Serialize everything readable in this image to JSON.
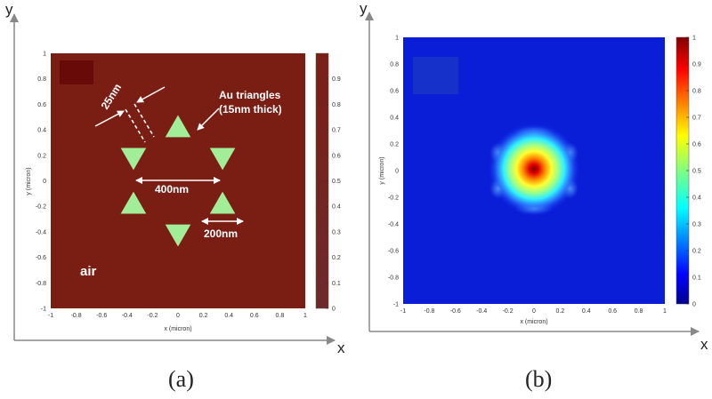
{
  "panel_a": {
    "label": "(a)",
    "background_color": "#7a1e14",
    "triangle_color": "#a2ee98",
    "annotations": {
      "gap": "25nm",
      "title_line1": "Au triangles",
      "title_line2": "(15nm thick)",
      "span": "400nm",
      "side": "200nm",
      "medium": "air"
    },
    "axis_x_letter": "x",
    "axis_y_letter": "y"
  },
  "panel_b": {
    "label": "(b)",
    "axis_x_letter": "x",
    "axis_y_letter": "y"
  },
  "chart_data": [
    {
      "type": "heatmap",
      "title": "",
      "xlabel": "x (micron)",
      "ylabel": "y (micron)",
      "xlim": [
        -1,
        1
      ],
      "ylim": [
        -1,
        1
      ],
      "x_ticks": [
        "-1",
        "-0.8",
        "-0.6",
        "-0.4",
        "-0.2",
        "0",
        "0.2",
        "0.4",
        "0.6",
        "0.8",
        "1"
      ],
      "y_ticks": [
        "-1",
        "-0.8",
        "-0.6",
        "-0.4",
        "-0.2",
        "0",
        "0.2",
        "0.4",
        "0.6",
        "0.8",
        "1"
      ],
      "colorbar_range": [
        0,
        1
      ],
      "colorbar_ticks": [
        "0",
        "0.1",
        "0.2",
        "0.3",
        "0.4",
        "0.5",
        "0.6",
        "0.7",
        "0.8",
        "0.9"
      ],
      "structure": "six Au triangles arranged as a hexagram (star of David) in air",
      "triangles": [
        {
          "orientation": "up",
          "cx": 0,
          "cy": 0.4
        },
        {
          "orientation": "down",
          "cx": -0.35,
          "cy": 0.2
        },
        {
          "orientation": "down",
          "cx": 0.35,
          "cy": 0.2
        },
        {
          "orientation": "up",
          "cx": -0.35,
          "cy": -0.2
        },
        {
          "orientation": "up",
          "cx": 0.35,
          "cy": -0.2
        },
        {
          "orientation": "down",
          "cx": 0,
          "cy": -0.4
        }
      ],
      "triangle_side": 0.2
    },
    {
      "type": "heatmap",
      "title": "",
      "xlabel": "x (micron)",
      "ylabel": "y (micron)",
      "xlim": [
        -1,
        1
      ],
      "ylim": [
        -1,
        1
      ],
      "x_ticks": [
        "-1",
        "-0.8",
        "-0.6",
        "-0.4",
        "-0.2",
        "0",
        "0.2",
        "0.4",
        "0.6",
        "0.8",
        "1"
      ],
      "y_ticks": [
        "-1",
        "-0.8",
        "-0.6",
        "-0.4",
        "-0.2",
        "0",
        "0.2",
        "0.4",
        "0.6",
        "0.8",
        "1"
      ],
      "colorbar_range": [
        0,
        1
      ],
      "colorbar_ticks": [
        "0",
        "0.1",
        "0.2",
        "0.3",
        "0.4",
        "0.5",
        "0.6",
        "0.7",
        "0.8",
        "0.9",
        "1"
      ],
      "field": "normalized intensity, peak 1 at (0, 0), decaying to about 0.3 at r = 0.2 micron",
      "peak": {
        "x": 0,
        "y": 0,
        "value": 1
      }
    }
  ]
}
